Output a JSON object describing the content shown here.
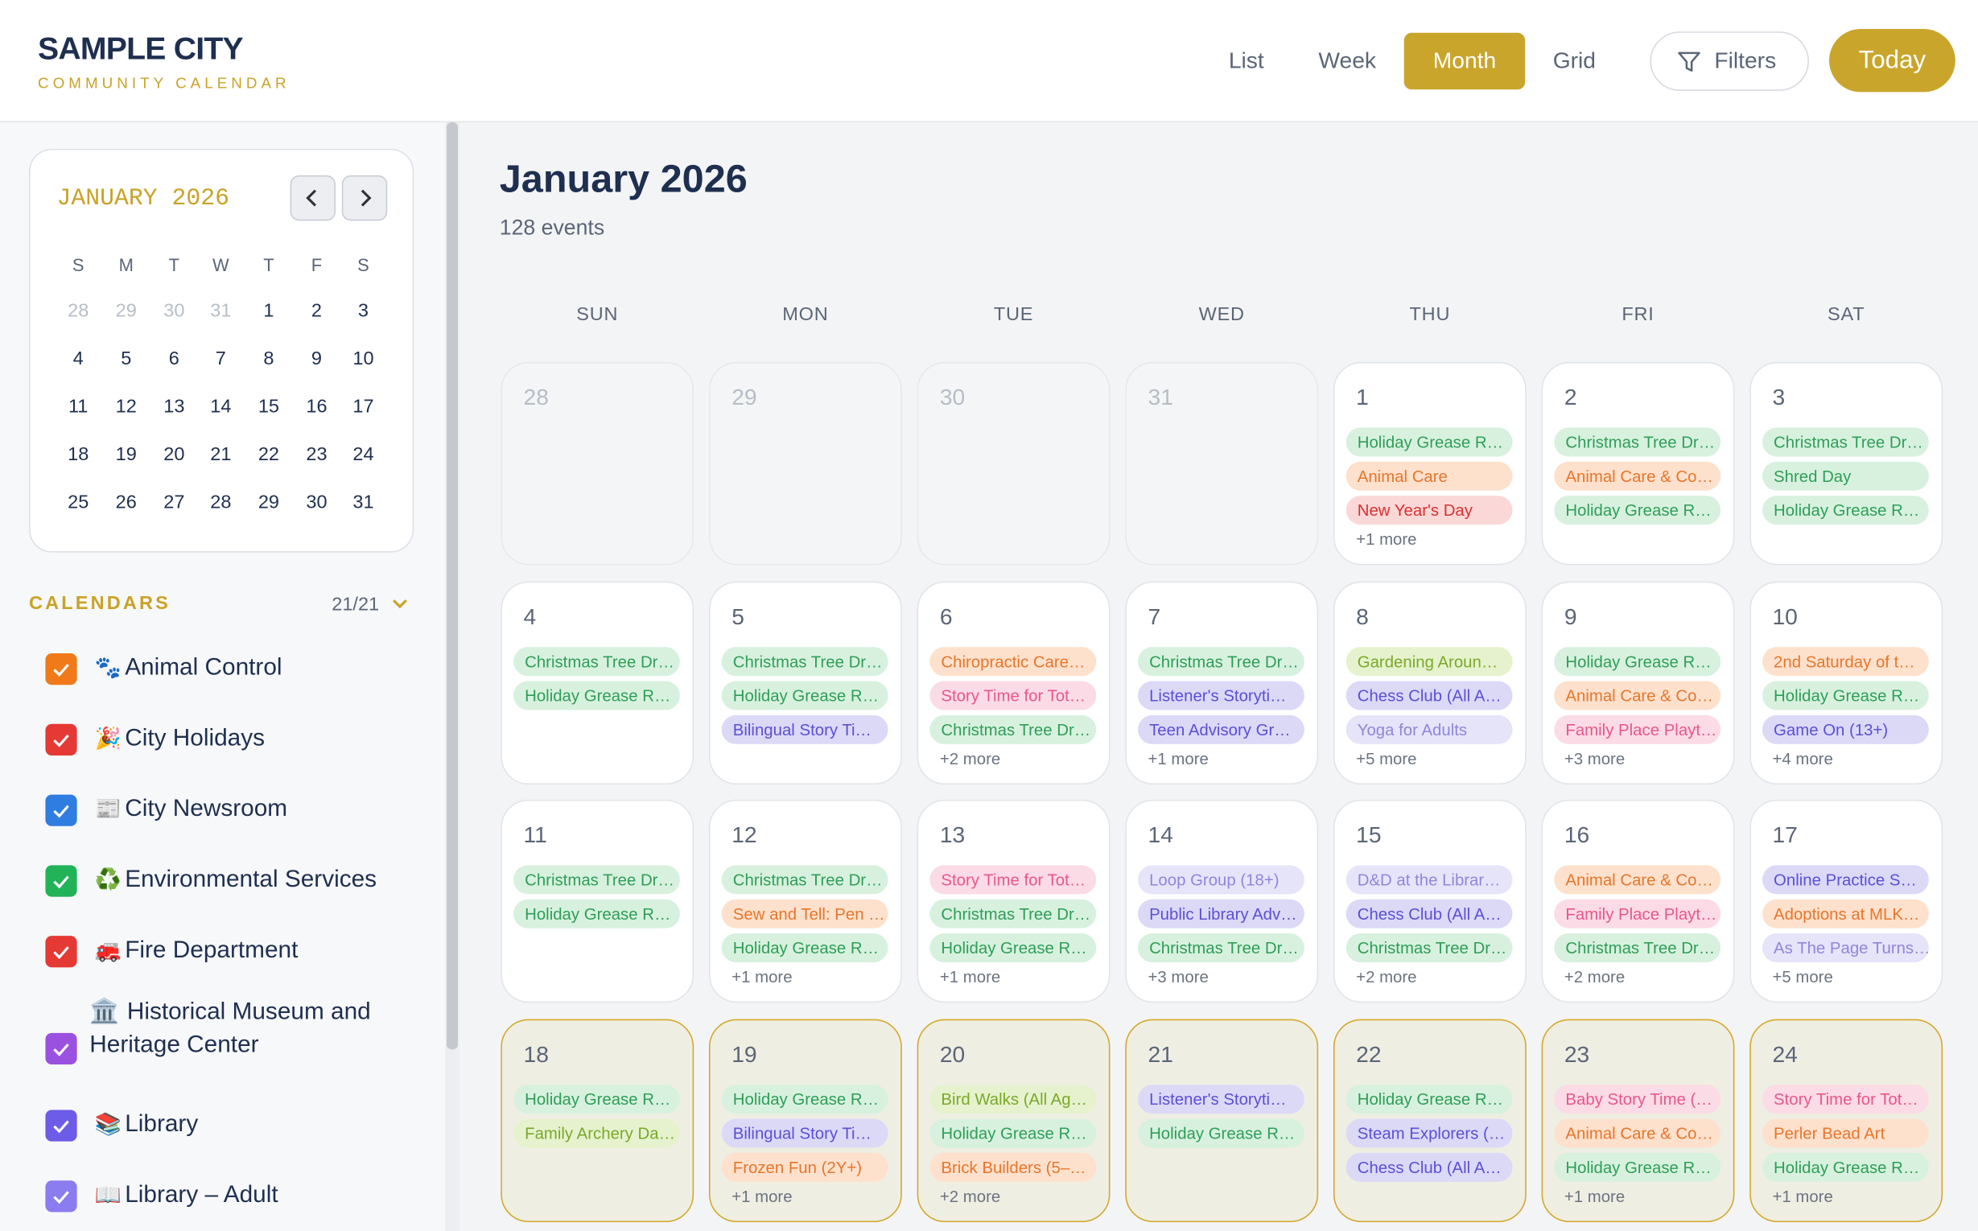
{
  "header": {
    "title": "SAMPLE CITY",
    "subtitle": "COMMUNITY CALENDAR"
  },
  "nav": {
    "views": [
      "List",
      "Week",
      "Month",
      "Grid"
    ],
    "active_view": 2,
    "filters": "Filters",
    "today": "Today"
  },
  "mini_calendar": {
    "title": "JANUARY 2026",
    "weekdays": [
      "S",
      "M",
      "T",
      "W",
      "T",
      "F",
      "S"
    ],
    "weeks": [
      [
        {
          "day": 28,
          "outside": true
        },
        {
          "day": 29,
          "outside": true
        },
        {
          "day": 30,
          "outside": true
        },
        {
          "day": 31,
          "outside": true
        },
        {
          "day": 1
        },
        {
          "day": 2
        },
        {
          "day": 3
        }
      ],
      [
        {
          "day": 4
        },
        {
          "day": 5
        },
        {
          "day": 6
        },
        {
          "day": 7
        },
        {
          "day": 8
        },
        {
          "day": 9
        },
        {
          "day": 10
        }
      ],
      [
        {
          "day": 11
        },
        {
          "day": 12
        },
        {
          "day": 13
        },
        {
          "day": 14
        },
        {
          "day": 15
        },
        {
          "day": 16
        },
        {
          "day": 17
        }
      ],
      [
        {
          "day": 18
        },
        {
          "day": 19
        },
        {
          "day": 20
        },
        {
          "day": 21
        },
        {
          "day": 22
        },
        {
          "day": 23
        },
        {
          "day": 24
        }
      ],
      [
        {
          "day": 25
        },
        {
          "day": 26
        },
        {
          "day": 27
        },
        {
          "day": 28
        },
        {
          "day": 29
        },
        {
          "day": 30
        },
        {
          "day": 31
        }
      ]
    ]
  },
  "calendars": {
    "label": "CALENDARS",
    "count": "21/21",
    "items": [
      {
        "icon": "🐾",
        "name": "Animal Control",
        "color": "#f07a1a"
      },
      {
        "icon": "🎉",
        "name": "City Holidays",
        "color": "#e53935"
      },
      {
        "icon": "📰",
        "name": "City Newsroom",
        "color": "#2f7de1"
      },
      {
        "icon": "♻️",
        "name": "Environmental Services",
        "color": "#22b359"
      },
      {
        "icon": "🚒",
        "name": "Fire Department",
        "color": "#e53935"
      },
      {
        "icon": "🏛️",
        "name": "Historical Museum and Heritage Center",
        "color": "#9b51e0"
      },
      {
        "icon": "📚",
        "name": "Library",
        "color": "#6c5ce7"
      },
      {
        "icon": "📖",
        "name": "Library – Adult",
        "color": "#8b7cf0"
      }
    ]
  },
  "main": {
    "title": "January 2026",
    "count": "128 events",
    "weekdays": [
      "SUN",
      "MON",
      "TUE",
      "WED",
      "THU",
      "FRI",
      "SAT"
    ],
    "palette": {
      "green": [
        "#d8f1df",
        "#2e9e57"
      ],
      "orange": [
        "#fde1cd",
        "#e8762a"
      ],
      "red": [
        "#fbd8d8",
        "#d93030"
      ],
      "purple": [
        "#dcd9f7",
        "#5b4fd6"
      ],
      "lavender": [
        "#e6e4f9",
        "#8f86dc"
      ],
      "pink": [
        "#fbdbe6",
        "#e8578a"
      ],
      "lime": [
        "#e6f2cd",
        "#7aa82a"
      ]
    },
    "weeks": [
      {
        "highlight": false,
        "days": [
          {
            "day": 28,
            "outside": true,
            "events": []
          },
          {
            "day": 29,
            "outside": true,
            "events": []
          },
          {
            "day": 30,
            "outside": true,
            "events": []
          },
          {
            "day": 31,
            "outside": true,
            "events": []
          },
          {
            "day": 1,
            "events": [
              {
                "text": "Holiday Grease R…",
                "c": "green"
              },
              {
                "text": "Animal Care",
                "c": "orange"
              },
              {
                "text": "New Year's Day",
                "c": "red"
              }
            ],
            "more": "+1 more"
          },
          {
            "day": 2,
            "events": [
              {
                "text": "Christmas Tree Dr…",
                "c": "green"
              },
              {
                "text": "Animal Care & Co…",
                "c": "orange"
              },
              {
                "text": "Holiday Grease R…",
                "c": "green"
              }
            ]
          },
          {
            "day": 3,
            "events": [
              {
                "text": "Christmas Tree Dr…",
                "c": "green"
              },
              {
                "text": "Shred Day",
                "c": "green"
              },
              {
                "text": "Holiday Grease R…",
                "c": "green"
              }
            ]
          }
        ]
      },
      {
        "highlight": false,
        "days": [
          {
            "day": 4,
            "events": [
              {
                "text": "Christmas Tree Dr…",
                "c": "green"
              },
              {
                "text": "Holiday Grease R…",
                "c": "green"
              }
            ]
          },
          {
            "day": 5,
            "events": [
              {
                "text": "Christmas Tree Dr…",
                "c": "green"
              },
              {
                "text": "Holiday Grease R…",
                "c": "green"
              },
              {
                "text": "Bilingual Story Ti…",
                "c": "purple"
              }
            ]
          },
          {
            "day": 6,
            "events": [
              {
                "text": "Chiropractic Care…",
                "c": "orange"
              },
              {
                "text": "Story Time for Tot…",
                "c": "pink"
              },
              {
                "text": "Christmas Tree Dr…",
                "c": "green"
              }
            ],
            "more": "+2 more"
          },
          {
            "day": 7,
            "events": [
              {
                "text": "Christmas Tree Dr…",
                "c": "green"
              },
              {
                "text": "Listener's Storyti…",
                "c": "purple"
              },
              {
                "text": "Teen Advisory Gr…",
                "c": "purple"
              }
            ],
            "more": "+1 more"
          },
          {
            "day": 8,
            "events": [
              {
                "text": "Gardening Aroun…",
                "c": "lime"
              },
              {
                "text": "Chess Club (All A…",
                "c": "purple"
              },
              {
                "text": "Yoga for Adults",
                "c": "lavender"
              }
            ],
            "more": "+5 more"
          },
          {
            "day": 9,
            "events": [
              {
                "text": "Holiday Grease R…",
                "c": "green"
              },
              {
                "text": "Animal Care & Co…",
                "c": "orange"
              },
              {
                "text": "Family Place Playt…",
                "c": "pink"
              }
            ],
            "more": "+3 more"
          },
          {
            "day": 10,
            "events": [
              {
                "text": "2nd Saturday of t…",
                "c": "orange"
              },
              {
                "text": "Holiday Grease R…",
                "c": "green"
              },
              {
                "text": "Game On (13+)",
                "c": "purple"
              }
            ],
            "more": "+4 more"
          }
        ]
      },
      {
        "highlight": false,
        "days": [
          {
            "day": 11,
            "events": [
              {
                "text": "Christmas Tree Dr…",
                "c": "green"
              },
              {
                "text": "Holiday Grease R…",
                "c": "green"
              }
            ]
          },
          {
            "day": 12,
            "events": [
              {
                "text": "Christmas Tree Dr…",
                "c": "green"
              },
              {
                "text": "Sew and Tell: Pen …",
                "c": "orange"
              },
              {
                "text": "Holiday Grease R…",
                "c": "green"
              }
            ],
            "more": "+1 more"
          },
          {
            "day": 13,
            "events": [
              {
                "text": "Story Time for Tot…",
                "c": "pink"
              },
              {
                "text": "Christmas Tree Dr…",
                "c": "green"
              },
              {
                "text": "Holiday Grease R…",
                "c": "green"
              }
            ],
            "more": "+1 more"
          },
          {
            "day": 14,
            "events": [
              {
                "text": "Loop Group (18+)",
                "c": "lavender"
              },
              {
                "text": "Public Library Adv…",
                "c": "purple"
              },
              {
                "text": "Christmas Tree Dr…",
                "c": "green"
              }
            ],
            "more": "+3 more"
          },
          {
            "day": 15,
            "events": [
              {
                "text": "D&D at the Librar…",
                "c": "lavender"
              },
              {
                "text": "Chess Club (All A…",
                "c": "purple"
              },
              {
                "text": "Christmas Tree Dr…",
                "c": "green"
              }
            ],
            "more": "+2 more"
          },
          {
            "day": 16,
            "events": [
              {
                "text": "Animal Care & Co…",
                "c": "orange"
              },
              {
                "text": "Family Place Playt…",
                "c": "pink"
              },
              {
                "text": "Christmas Tree Dr…",
                "c": "green"
              }
            ],
            "more": "+2 more"
          },
          {
            "day": 17,
            "events": [
              {
                "text": "Online Practice S…",
                "c": "purple"
              },
              {
                "text": "Adoptions at MLK…",
                "c": "orange"
              },
              {
                "text": "As The Page Turns…",
                "c": "lavender"
              }
            ],
            "more": "+5 more"
          }
        ]
      },
      {
        "highlight": true,
        "days": [
          {
            "day": 18,
            "events": [
              {
                "text": "Holiday Grease R…",
                "c": "green"
              },
              {
                "text": "Family Archery Da…",
                "c": "lime"
              }
            ]
          },
          {
            "day": 19,
            "events": [
              {
                "text": "Holiday Grease R…",
                "c": "green"
              },
              {
                "text": "Bilingual Story Ti…",
                "c": "purple"
              },
              {
                "text": "Frozen Fun (2Y+)",
                "c": "orange"
              }
            ],
            "more": "+1 more"
          },
          {
            "day": 20,
            "events": [
              {
                "text": "Bird Walks (All Ag…",
                "c": "lime"
              },
              {
                "text": "Holiday Grease R…",
                "c": "green"
              },
              {
                "text": "Brick Builders (5–…",
                "c": "orange"
              }
            ],
            "more": "+2 more"
          },
          {
            "day": 21,
            "events": [
              {
                "text": "Listener's Storyti…",
                "c": "purple"
              },
              {
                "text": "Holiday Grease R…",
                "c": "green"
              }
            ]
          },
          {
            "day": 22,
            "events": [
              {
                "text": "Holiday Grease R…",
                "c": "green"
              },
              {
                "text": "Steam Explorers (…",
                "c": "purple"
              },
              {
                "text": "Chess Club (All A…",
                "c": "purple"
              }
            ]
          },
          {
            "day": 23,
            "events": [
              {
                "text": "Baby Story Time (…",
                "c": "pink"
              },
              {
                "text": "Animal Care & Co…",
                "c": "orange"
              },
              {
                "text": "Holiday Grease R…",
                "c": "green"
              }
            ],
            "more": "+1 more"
          },
          {
            "day": 24,
            "events": [
              {
                "text": "Story Time for Tot…",
                "c": "pink"
              },
              {
                "text": "Perler Bead Art",
                "c": "orange"
              },
              {
                "text": "Holiday Grease R…",
                "c": "green"
              }
            ],
            "more": "+1 more"
          }
        ]
      }
    ]
  }
}
